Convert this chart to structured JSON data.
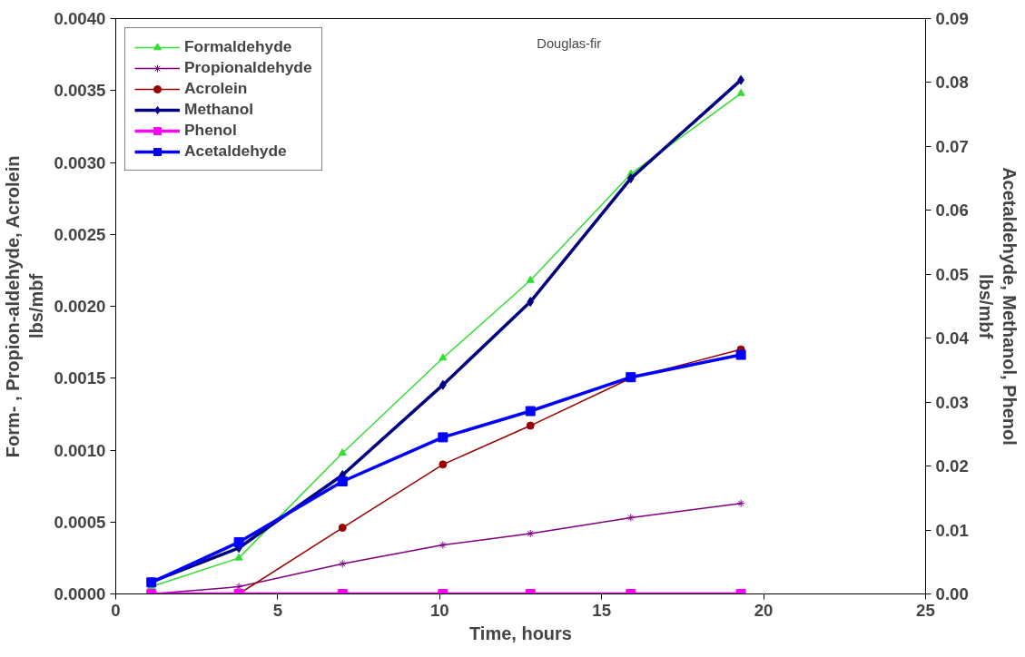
{
  "chart_data": {
    "type": "line",
    "xlabel": "Time, hours",
    "ylabel": "Form- , Propion-aldehyde, Acrolein\nlbs/mbf",
    "y2label": "Acetaldehyde, Methanol, Phenol\nlbs/mbf",
    "annotations": [
      "Douglas-fir"
    ],
    "x": [
      1.1,
      3.8,
      7.0,
      10.1,
      12.8,
      15.9,
      19.3
    ],
    "xlim": [
      0,
      25
    ],
    "xticks": [
      0,
      5,
      10,
      15,
      20,
      25
    ],
    "ylim": [
      0,
      0.004
    ],
    "yticks": [
      {
        "value": 0,
        "label": "0.0000"
      },
      {
        "value": 0.0005,
        "label": "0.0005"
      },
      {
        "value": 0.001,
        "label": "0.0010"
      },
      {
        "value": 0.0015,
        "label": "0.0015"
      },
      {
        "value": 0.002,
        "label": "0.0020"
      },
      {
        "value": 0.0025,
        "label": "0.0025"
      },
      {
        "value": 0.003,
        "label": "0.0030"
      },
      {
        "value": 0.0035,
        "label": "0.0035"
      },
      {
        "value": 0.004,
        "label": "0.0040"
      }
    ],
    "y2lim": [
      0,
      0.09
    ],
    "y2ticks": [
      {
        "value": 0,
        "label": "0.00"
      },
      {
        "value": 0.01,
        "label": "0.01"
      },
      {
        "value": 0.02,
        "label": "0.02"
      },
      {
        "value": 0.03,
        "label": "0.03"
      },
      {
        "value": 0.04,
        "label": "0.04"
      },
      {
        "value": 0.05,
        "label": "0.05"
      },
      {
        "value": 0.06,
        "label": "0.06"
      },
      {
        "value": 0.07,
        "label": "0.07"
      },
      {
        "value": 0.08,
        "label": "0.08"
      },
      {
        "value": 0.09,
        "label": "0.09"
      }
    ],
    "grid": false,
    "legend": "top left",
    "line_style": "solid",
    "series": [
      {
        "name": "Formaldehyde",
        "color": "#33dd33",
        "marker": "triangle",
        "values": [
          5e-05,
          0.00025,
          0.00098,
          0.00164,
          0.00218,
          0.00292,
          0.00348
        ]
      },
      {
        "name": "Propionaldehyde",
        "color": "#800080",
        "marker": "cross",
        "values": [
          0.0,
          5e-05,
          0.00021,
          0.00034,
          0.00042,
          0.00053,
          0.00063
        ]
      },
      {
        "name": "Acrolein",
        "color": "#990000",
        "marker": "circle",
        "values": [
          0.0,
          0.0,
          0.00046,
          0.0009,
          0.00117,
          0.0015,
          0.0017
        ]
      },
      {
        "name": "Methanol",
        "color": "#000080",
        "marker": "diamond",
        "axis": "y2",
        "values": [
          0.0019,
          0.0072,
          0.0186,
          0.0327,
          0.0457,
          0.065,
          0.0804
        ]
      },
      {
        "name": "Phenol",
        "color": "#ff00ff",
        "marker": "square",
        "axis": "y2",
        "values": [
          0,
          0,
          0,
          0,
          0,
          0,
          0
        ]
      },
      {
        "name": "Acetaldehyde",
        "color": "#0000ff",
        "marker": "square",
        "axis": "y2",
        "values": [
          0.0018,
          0.0081,
          0.0176,
          0.0245,
          0.0286,
          0.0339,
          0.0374
        ]
      }
    ]
  }
}
